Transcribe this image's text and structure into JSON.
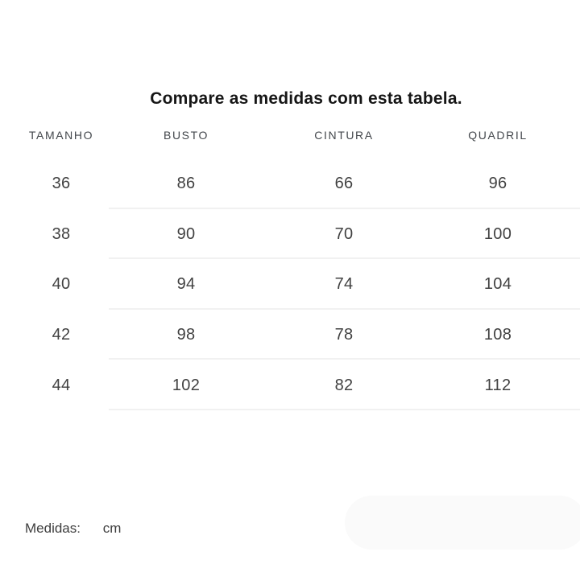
{
  "title": "Compare as medidas com esta tabela.",
  "table": {
    "headers": [
      "TAMANHO",
      "BUSTO",
      "CINTURA",
      "QUADRIL"
    ],
    "rows": [
      [
        "36",
        "86",
        "66",
        "96"
      ],
      [
        "38",
        "90",
        "70",
        "100"
      ],
      [
        "40",
        "94",
        "74",
        "104"
      ],
      [
        "42",
        "98",
        "78",
        "108"
      ],
      [
        "44",
        "102",
        "82",
        "112"
      ]
    ]
  },
  "footer": {
    "label": "Medidas:",
    "unit": "cm"
  },
  "colors": {
    "page_bg": "#ffffff",
    "title_text": "#161616",
    "header_text": "#43474c",
    "cell_text": "#414141",
    "footer_text": "#3e3e3e",
    "divider": "#f1f1f1",
    "pill_bg": "#fafafa"
  }
}
